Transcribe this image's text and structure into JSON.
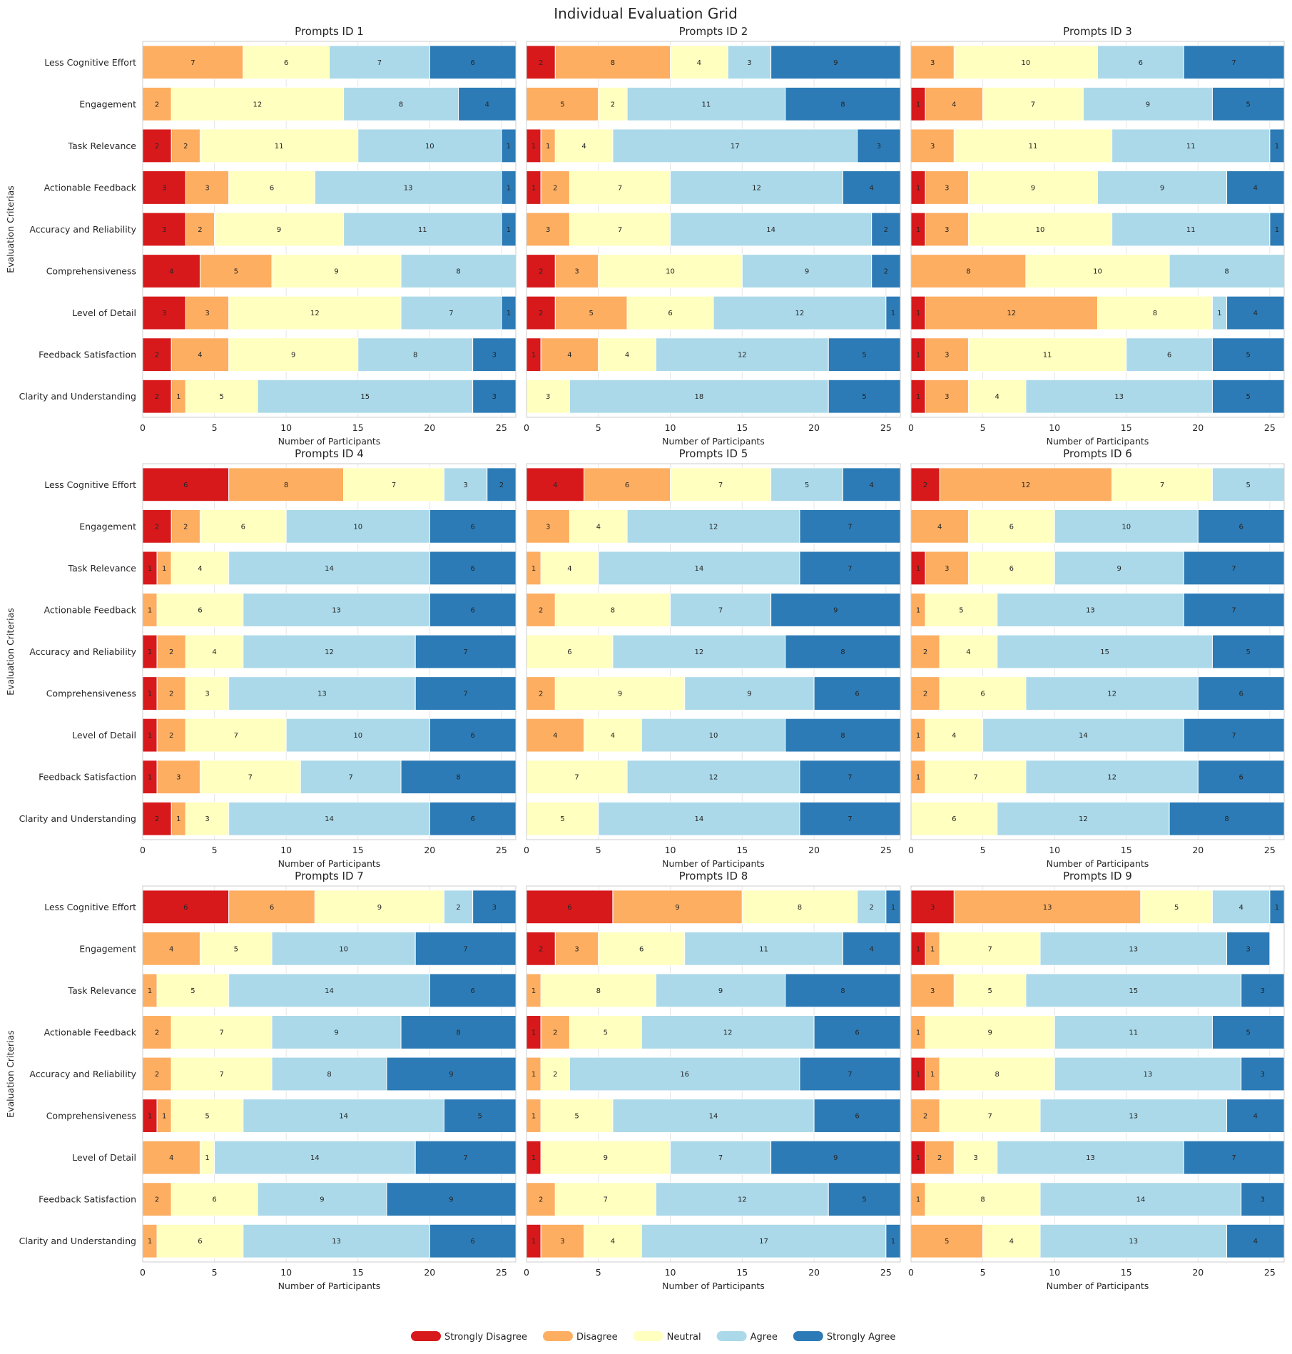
{
  "figure": {
    "title": "Individual Evaluation Grid",
    "legend": {
      "placement": "bottom-center"
    }
  },
  "chart_data": [
    {
      "type": "bar",
      "orientation": "horizontal-stacked",
      "title": "Prompts ID 1",
      "xlabel": "Number of Participants",
      "ylabel": "Evaluation Criterias",
      "xlim": [
        0,
        26
      ],
      "xticks": [
        0,
        5,
        10,
        15,
        20,
        25
      ],
      "grid": true,
      "categories": [
        "Less Cognitive Effort",
        "Engagement",
        "Task Relevance",
        "Actionable Feedback",
        "Accuracy and Reliability",
        "Comprehensiveness",
        "Level of Detail",
        "Feedback Satisfaction",
        "Clarity and Understanding"
      ],
      "series": [
        {
          "name": "Strongly Disagree",
          "color": "#d7191c",
          "values": [
            0,
            0,
            2,
            3,
            3,
            4,
            3,
            2,
            2
          ]
        },
        {
          "name": "Disagree",
          "color": "#fdae61",
          "values": [
            7,
            2,
            2,
            3,
            2,
            5,
            3,
            4,
            1
          ]
        },
        {
          "name": "Neutral",
          "color": "#ffffbf",
          "values": [
            6,
            12,
            11,
            6,
            9,
            9,
            12,
            9,
            5
          ]
        },
        {
          "name": "Agree",
          "color": "#abd9e9",
          "values": [
            7,
            8,
            10,
            13,
            11,
            8,
            7,
            8,
            15
          ]
        },
        {
          "name": "Strongly Agree",
          "color": "#2c7bb6",
          "values": [
            6,
            4,
            1,
            1,
            1,
            0,
            1,
            3,
            3
          ]
        }
      ]
    },
    {
      "type": "bar",
      "orientation": "horizontal-stacked",
      "title": "Prompts ID 2",
      "xlabel": "Number of Participants",
      "ylabel": "",
      "xlim": [
        0,
        26
      ],
      "xticks": [
        0,
        5,
        10,
        15,
        20,
        25
      ],
      "grid": true,
      "categories": [
        "Less Cognitive Effort",
        "Engagement",
        "Task Relevance",
        "Actionable Feedback",
        "Accuracy and Reliability",
        "Comprehensiveness",
        "Level of Detail",
        "Feedback Satisfaction",
        "Clarity and Understanding"
      ],
      "series": [
        {
          "name": "Strongly Disagree",
          "color": "#d7191c",
          "values": [
            2,
            0,
            1,
            1,
            0,
            2,
            2,
            1,
            0
          ]
        },
        {
          "name": "Disagree",
          "color": "#fdae61",
          "values": [
            8,
            5,
            1,
            2,
            3,
            3,
            5,
            4,
            0
          ]
        },
        {
          "name": "Neutral",
          "color": "#ffffbf",
          "values": [
            4,
            2,
            4,
            7,
            7,
            10,
            6,
            4,
            3
          ]
        },
        {
          "name": "Agree",
          "color": "#abd9e9",
          "values": [
            3,
            11,
            17,
            12,
            14,
            9,
            12,
            12,
            18
          ]
        },
        {
          "name": "Strongly Agree",
          "color": "#2c7bb6",
          "values": [
            9,
            8,
            3,
            4,
            2,
            2,
            1,
            5,
            5
          ]
        }
      ]
    },
    {
      "type": "bar",
      "orientation": "horizontal-stacked",
      "title": "Prompts ID 3",
      "xlabel": "Number of Participants",
      "ylabel": "",
      "xlim": [
        0,
        26
      ],
      "xticks": [
        0,
        5,
        10,
        15,
        20,
        25
      ],
      "grid": true,
      "categories": [
        "Less Cognitive Effort",
        "Engagement",
        "Task Relevance",
        "Actionable Feedback",
        "Accuracy and Reliability",
        "Comprehensiveness",
        "Level of Detail",
        "Feedback Satisfaction",
        "Clarity and Understanding"
      ],
      "series": [
        {
          "name": "Strongly Disagree",
          "color": "#d7191c",
          "values": [
            0,
            1,
            0,
            1,
            1,
            0,
            1,
            1,
            1
          ]
        },
        {
          "name": "Disagree",
          "color": "#fdae61",
          "values": [
            3,
            4,
            3,
            3,
            3,
            8,
            12,
            3,
            3
          ]
        },
        {
          "name": "Neutral",
          "color": "#ffffbf",
          "values": [
            10,
            7,
            11,
            9,
            10,
            10,
            8,
            11,
            4
          ]
        },
        {
          "name": "Agree",
          "color": "#abd9e9",
          "values": [
            6,
            9,
            11,
            9,
            11,
            8,
            1,
            6,
            13
          ]
        },
        {
          "name": "Strongly Agree",
          "color": "#2c7bb6",
          "values": [
            7,
            5,
            1,
            4,
            1,
            0,
            4,
            5,
            5
          ]
        }
      ]
    },
    {
      "type": "bar",
      "orientation": "horizontal-stacked",
      "title": "Prompts ID 4",
      "xlabel": "Number of Participants",
      "ylabel": "Evaluation Criterias",
      "xlim": [
        0,
        26
      ],
      "xticks": [
        0,
        5,
        10,
        15,
        20,
        25
      ],
      "grid": true,
      "categories": [
        "Less Cognitive Effort",
        "Engagement",
        "Task Relevance",
        "Actionable Feedback",
        "Accuracy and Reliability",
        "Comprehensiveness",
        "Level of Detail",
        "Feedback Satisfaction",
        "Clarity and Understanding"
      ],
      "series": [
        {
          "name": "Strongly Disagree",
          "color": "#d7191c",
          "values": [
            6,
            2,
            1,
            0,
            1,
            1,
            1,
            1,
            2
          ]
        },
        {
          "name": "Disagree",
          "color": "#fdae61",
          "values": [
            8,
            2,
            1,
            1,
            2,
            2,
            2,
            3,
            1
          ]
        },
        {
          "name": "Neutral",
          "color": "#ffffbf",
          "values": [
            7,
            6,
            4,
            6,
            4,
            3,
            7,
            7,
            3
          ]
        },
        {
          "name": "Agree",
          "color": "#abd9e9",
          "values": [
            3,
            10,
            14,
            13,
            12,
            13,
            10,
            7,
            14
          ]
        },
        {
          "name": "Strongly Agree",
          "color": "#2c7bb6",
          "values": [
            2,
            6,
            6,
            6,
            7,
            7,
            6,
            8,
            6
          ]
        }
      ]
    },
    {
      "type": "bar",
      "orientation": "horizontal-stacked",
      "title": "Prompts ID 5",
      "xlabel": "Number of Participants",
      "ylabel": "",
      "xlim": [
        0,
        26
      ],
      "xticks": [
        0,
        5,
        10,
        15,
        20,
        25
      ],
      "grid": true,
      "categories": [
        "Less Cognitive Effort",
        "Engagement",
        "Task Relevance",
        "Actionable Feedback",
        "Accuracy and Reliability",
        "Comprehensiveness",
        "Level of Detail",
        "Feedback Satisfaction",
        "Clarity and Understanding"
      ],
      "series": [
        {
          "name": "Strongly Disagree",
          "color": "#d7191c",
          "values": [
            4,
            0,
            0,
            0,
            0,
            0,
            0,
            0,
            0
          ]
        },
        {
          "name": "Disagree",
          "color": "#fdae61",
          "values": [
            6,
            3,
            1,
            2,
            0,
            2,
            4,
            0,
            0
          ]
        },
        {
          "name": "Neutral",
          "color": "#ffffbf",
          "values": [
            7,
            4,
            4,
            8,
            6,
            9,
            4,
            7,
            5
          ]
        },
        {
          "name": "Agree",
          "color": "#abd9e9",
          "values": [
            5,
            12,
            14,
            7,
            12,
            9,
            10,
            12,
            14
          ]
        },
        {
          "name": "Strongly Agree",
          "color": "#2c7bb6",
          "values": [
            4,
            7,
            7,
            9,
            8,
            6,
            8,
            7,
            7
          ]
        }
      ]
    },
    {
      "type": "bar",
      "orientation": "horizontal-stacked",
      "title": "Prompts ID 6",
      "xlabel": "Number of Participants",
      "ylabel": "",
      "xlim": [
        0,
        26
      ],
      "xticks": [
        0,
        5,
        10,
        15,
        20,
        25
      ],
      "grid": true,
      "categories": [
        "Less Cognitive Effort",
        "Engagement",
        "Task Relevance",
        "Actionable Feedback",
        "Accuracy and Reliability",
        "Comprehensiveness",
        "Level of Detail",
        "Feedback Satisfaction",
        "Clarity and Understanding"
      ],
      "series": [
        {
          "name": "Strongly Disagree",
          "color": "#d7191c",
          "values": [
            2,
            0,
            1,
            0,
            0,
            0,
            0,
            0,
            0
          ]
        },
        {
          "name": "Disagree",
          "color": "#fdae61",
          "values": [
            12,
            4,
            3,
            1,
            2,
            2,
            1,
            1,
            0
          ]
        },
        {
          "name": "Neutral",
          "color": "#ffffbf",
          "values": [
            7,
            6,
            6,
            5,
            4,
            6,
            4,
            7,
            6
          ]
        },
        {
          "name": "Agree",
          "color": "#abd9e9",
          "values": [
            5,
            10,
            9,
            13,
            15,
            12,
            14,
            12,
            12
          ]
        },
        {
          "name": "Strongly Agree",
          "color": "#2c7bb6",
          "values": [
            0,
            6,
            7,
            7,
            5,
            6,
            7,
            6,
            8
          ]
        }
      ]
    },
    {
      "type": "bar",
      "orientation": "horizontal-stacked",
      "title": "Prompts ID 7",
      "xlabel": "Number of Participants",
      "ylabel": "Evaluation Criterias",
      "xlim": [
        0,
        26
      ],
      "xticks": [
        0,
        5,
        10,
        15,
        20,
        25
      ],
      "grid": true,
      "categories": [
        "Less Cognitive Effort",
        "Engagement",
        "Task Relevance",
        "Actionable Feedback",
        "Accuracy and Reliability",
        "Comprehensiveness",
        "Level of Detail",
        "Feedback Satisfaction",
        "Clarity and Understanding"
      ],
      "series": [
        {
          "name": "Strongly Disagree",
          "color": "#d7191c",
          "values": [
            6,
            0,
            0,
            0,
            0,
            1,
            0,
            0,
            0
          ]
        },
        {
          "name": "Disagree",
          "color": "#fdae61",
          "values": [
            6,
            4,
            1,
            2,
            2,
            1,
            4,
            2,
            1
          ]
        },
        {
          "name": "Neutral",
          "color": "#ffffbf",
          "values": [
            9,
            5,
            5,
            7,
            7,
            5,
            1,
            6,
            6
          ]
        },
        {
          "name": "Agree",
          "color": "#abd9e9",
          "values": [
            2,
            10,
            14,
            9,
            8,
            14,
            14,
            9,
            13
          ]
        },
        {
          "name": "Strongly Agree",
          "color": "#2c7bb6",
          "values": [
            3,
            7,
            6,
            8,
            9,
            5,
            7,
            9,
            6
          ]
        }
      ]
    },
    {
      "type": "bar",
      "orientation": "horizontal-stacked",
      "title": "Prompts ID 8",
      "xlabel": "Number of Participants",
      "ylabel": "",
      "xlim": [
        0,
        26
      ],
      "xticks": [
        0,
        5,
        10,
        15,
        20,
        25
      ],
      "grid": true,
      "categories": [
        "Less Cognitive Effort",
        "Engagement",
        "Task Relevance",
        "Actionable Feedback",
        "Accuracy and Reliability",
        "Comprehensiveness",
        "Level of Detail",
        "Feedback Satisfaction",
        "Clarity and Understanding"
      ],
      "series": [
        {
          "name": "Strongly Disagree",
          "color": "#d7191c",
          "values": [
            6,
            2,
            0,
            1,
            0,
            0,
            1,
            0,
            1
          ]
        },
        {
          "name": "Disagree",
          "color": "#fdae61",
          "values": [
            9,
            3,
            1,
            2,
            1,
            1,
            0,
            2,
            3
          ]
        },
        {
          "name": "Neutral",
          "color": "#ffffbf",
          "values": [
            8,
            6,
            8,
            5,
            2,
            5,
            9,
            7,
            4
          ]
        },
        {
          "name": "Agree",
          "color": "#abd9e9",
          "values": [
            2,
            11,
            9,
            12,
            16,
            14,
            7,
            12,
            17
          ]
        },
        {
          "name": "Strongly Agree",
          "color": "#2c7bb6",
          "values": [
            1,
            4,
            8,
            6,
            7,
            6,
            9,
            5,
            1
          ]
        }
      ]
    },
    {
      "type": "bar",
      "orientation": "horizontal-stacked",
      "title": "Prompts ID 9",
      "xlabel": "Number of Participants",
      "ylabel": "",
      "xlim": [
        0,
        26
      ],
      "xticks": [
        0,
        5,
        10,
        15,
        20,
        25
      ],
      "grid": true,
      "categories": [
        "Less Cognitive Effort",
        "Engagement",
        "Task Relevance",
        "Actionable Feedback",
        "Accuracy and Reliability",
        "Comprehensiveness",
        "Level of Detail",
        "Feedback Satisfaction",
        "Clarity and Understanding"
      ],
      "series": [
        {
          "name": "Strongly Disagree",
          "color": "#d7191c",
          "values": [
            3,
            1,
            0,
            0,
            1,
            0,
            1,
            0,
            0
          ]
        },
        {
          "name": "Disagree",
          "color": "#fdae61",
          "values": [
            13,
            1,
            3,
            1,
            1,
            2,
            2,
            1,
            5
          ]
        },
        {
          "name": "Neutral",
          "color": "#ffffbf",
          "values": [
            5,
            7,
            5,
            9,
            8,
            7,
            3,
            8,
            4
          ]
        },
        {
          "name": "Agree",
          "color": "#abd9e9",
          "values": [
            4,
            13,
            15,
            11,
            13,
            13,
            13,
            14,
            13
          ]
        },
        {
          "name": "Strongly Agree",
          "color": "#2c7bb6",
          "values": [
            1,
            3,
            3,
            5,
            3,
            4,
            7,
            3,
            4
          ]
        }
      ]
    }
  ]
}
